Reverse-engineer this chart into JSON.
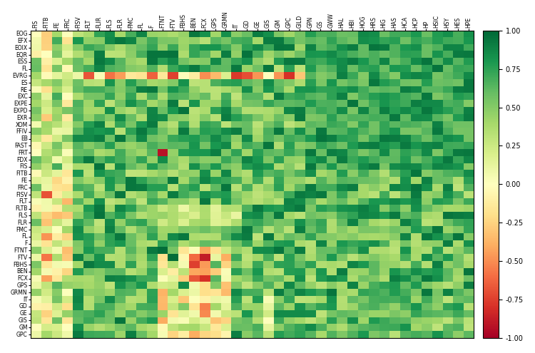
{
  "x_labels": [
    "FIS",
    "FITB",
    "FE",
    "FRC",
    "FISV",
    "FLT",
    "FLIR",
    "FLS",
    "FLR",
    "FMC",
    "FL",
    "F",
    "FTNT",
    "FTV",
    "FBHS",
    "BEN",
    "FCX",
    "GPS",
    "GRMN",
    "IT",
    "GD",
    "GE",
    "GIS",
    "GM",
    "GPC",
    "GILD",
    "GPN",
    "GS",
    "GWW",
    "HAL",
    "HBI",
    "HOG",
    "HRS",
    "HIG",
    "HAS",
    "HCA",
    "HCP",
    "HP",
    "HSIC",
    "HSY",
    "HES",
    "HPE"
  ],
  "y_labels": [
    "EOG",
    "EFX",
    "EOIX",
    "EQR",
    "ESS",
    "FL",
    "EVRG",
    "ES",
    "RE",
    "EXC",
    "EXPE",
    "EXPD",
    "EXR",
    "XOM",
    "FFIV",
    "EB",
    "FAST",
    "FRT",
    "FDX",
    "FIS",
    "FITB",
    "FE",
    "FRC",
    "FISV",
    "FLT",
    "FLTB",
    "FLS",
    "FLR",
    "FMC",
    "FL",
    "F",
    "FTNT",
    "FTV",
    "FBHS",
    "BEN",
    "FCX",
    "GPS",
    "GRMN",
    "IT",
    "GD",
    "GE",
    "GIS",
    "GM",
    "GPC"
  ],
  "colormap": "RdYlGn",
  "vmin": -1.0,
  "vmax": 1.0,
  "figsize": [
    7.5,
    4.95
  ],
  "dpi": 100
}
